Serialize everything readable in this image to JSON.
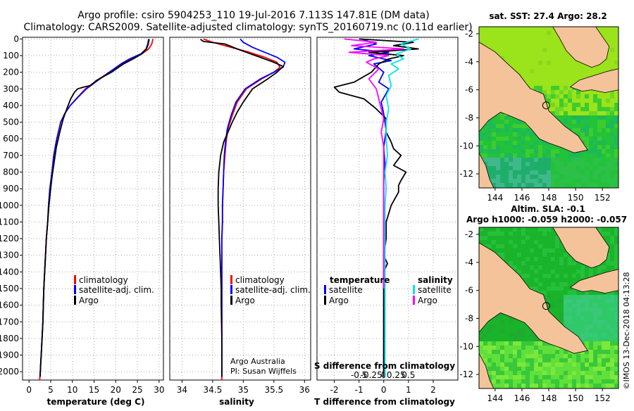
{
  "header": {
    "line1": "Argo profile: csiro 5904253_110 19-Jul-2016 7.113S 147.81E (DM data)",
    "line2": "Climatology: CARS2009. Satellite-adjusted climatology: synTS_20160719.nc (0.11d earlier)"
  },
  "watermark": "©IMOS 13-Dec-2018 04:13:28",
  "colors": {
    "climatology": "#ff0000",
    "satellite": "#0000ff",
    "argo": "#000000",
    "sat_salt": "#00e5e5",
    "argo_salt": "#ff00ff",
    "land": "#f5c39a"
  },
  "chart_data": [
    {
      "type": "line",
      "id": "temperature",
      "xlabel": "temperature (deg C)",
      "ylabel": "",
      "xlim": [
        -1.5,
        31
      ],
      "ylim": [
        2050,
        -10
      ],
      "xticks": [
        "0",
        "5",
        "10",
        "15",
        "20",
        "25",
        "30"
      ],
      "yticks": [
        "0",
        "100",
        "200",
        "300",
        "400",
        "500",
        "600",
        "700",
        "800",
        "900",
        "1000",
        "1100",
        "1200",
        "1300",
        "1400",
        "1500",
        "1600",
        "1700",
        "1800",
        "1900",
        "2000"
      ],
      "legend": [
        "climatology",
        "satellite-adj. clim.",
        "Argo"
      ],
      "legend_position": "lower-right",
      "series": [
        {
          "name": "climatology",
          "color": "#ff0000",
          "x": [
            28.6,
            28.3,
            27.6,
            26,
            23.5,
            21.5,
            18.5,
            15.6,
            13,
            11.2,
            9.5,
            8.2,
            7.3,
            6.4,
            5.7,
            5.3,
            4.8,
            4.5,
            4.3,
            4.0,
            3.8,
            3.6,
            3.4,
            3.3,
            3.2,
            3.0,
            2.9,
            2.8,
            2.7,
            2.6,
            2.5,
            2.45
          ],
          "y": [
            0,
            30,
            60,
            90,
            120,
            150,
            200,
            250,
            300,
            350,
            400,
            450,
            500,
            600,
            700,
            800,
            900,
            1000,
            1100,
            1200,
            1300,
            1400,
            1500,
            1600,
            1700,
            1800,
            1850,
            1900,
            1950,
            2000,
            2030,
            2050
          ]
        },
        {
          "name": "satellite-adj. clim.",
          "color": "#0000ff",
          "x": [
            27.6,
            27.4,
            27.0,
            25.8,
            23.2,
            21.2,
            18.5,
            15.8,
            13.2,
            11.3,
            9.5,
            8.2,
            7.3,
            6.4,
            5.7,
            5.3,
            4.8,
            4.5,
            4.3,
            4.0,
            3.8,
            3.6,
            3.4,
            3.3,
            3.2,
            3.0,
            2.9,
            2.8,
            2.7,
            2.6,
            2.55
          ],
          "y": [
            0,
            30,
            60,
            90,
            120,
            150,
            200,
            250,
            300,
            350,
            400,
            450,
            500,
            600,
            700,
            800,
            900,
            1000,
            1100,
            1200,
            1300,
            1400,
            1500,
            1600,
            1700,
            1800,
            1850,
            1900,
            1950,
            2000,
            2030
          ]
        },
        {
          "name": "Argo",
          "color": "#000000",
          "x": [
            27.7,
            27.5,
            27.1,
            26,
            24,
            21.8,
            19,
            15.5,
            14.2,
            12.5,
            11.2,
            10.5,
            9.6,
            8.7,
            7.9,
            7.1,
            6.3,
            5.8,
            5.3,
            4.9,
            4.6,
            4.3,
            4.0,
            3.8,
            3.6,
            3.4,
            3.3,
            3.2,
            3.0,
            2.9,
            2.8,
            2.7,
            2.6,
            2.55
          ],
          "y": [
            2,
            30,
            60,
            90,
            120,
            150,
            200,
            250,
            280,
            290,
            300,
            320,
            360,
            420,
            480,
            560,
            650,
            740,
            830,
            920,
            1000,
            1100,
            1200,
            1300,
            1400,
            1500,
            1600,
            1700,
            1800,
            1850,
            1900,
            1950,
            2000,
            2030
          ]
        }
      ]
    },
    {
      "type": "line",
      "id": "salinity",
      "xlabel": "salinity",
      "xlim": [
        33.8,
        36.1
      ],
      "ylim": [
        2050,
        -10
      ],
      "xticks": [
        "34",
        "34.5",
        "35",
        "35.5",
        "36"
      ],
      "legend": [
        "climatology",
        "satellite-adj. clim.",
        "Argo"
      ],
      "legend_position": "lower-right",
      "annotation": [
        "Argo Australia",
        "PI: Susan Wijffels"
      ],
      "series": [
        {
          "name": "climatology",
          "color": "#ff0000",
          "x": [
            34.35,
            34.5,
            34.8,
            35.1,
            35.35,
            35.55,
            35.6,
            35.5,
            35.3,
            35.05,
            34.9,
            34.82,
            34.75,
            34.72,
            34.7,
            34.68,
            34.67,
            34.66,
            34.66,
            34.65,
            34.65,
            34.65,
            34.65,
            34.65,
            34.65,
            34.65,
            34.65,
            34.65
          ],
          "y": [
            0,
            20,
            50,
            80,
            110,
            140,
            170,
            200,
            240,
            300,
            380,
            460,
            540,
            620,
            700,
            800,
            900,
            1000,
            1100,
            1200,
            1300,
            1400,
            1500,
            1600,
            1700,
            1800,
            1900,
            2050
          ]
        },
        {
          "name": "satellite-adj. clim.",
          "color": "#0000ff",
          "x": [
            34.95,
            35.0,
            35.15,
            35.35,
            35.55,
            35.68,
            35.65,
            35.5,
            35.28,
            35.03,
            34.88,
            34.8,
            34.74,
            34.71,
            34.69,
            34.68,
            34.67,
            34.66,
            34.66,
            34.65,
            34.65,
            34.65,
            34.65,
            34.65,
            34.65,
            34.65,
            34.65
          ],
          "y": [
            0,
            20,
            50,
            80,
            110,
            140,
            170,
            200,
            240,
            300,
            380,
            460,
            540,
            620,
            700,
            800,
            900,
            1000,
            1100,
            1200,
            1300,
            1400,
            1500,
            1600,
            1700,
            1800,
            2030
          ]
        },
        {
          "name": "Argo",
          "color": "#000000",
          "x": [
            34.3,
            34.35,
            34.7,
            34.9,
            35.2,
            35.5,
            35.65,
            35.55,
            35.4,
            35.15,
            35.0,
            34.9,
            34.82,
            34.75,
            34.68,
            34.63,
            34.6,
            34.59,
            34.59,
            34.6,
            34.61,
            34.62,
            34.63,
            34.64,
            34.64,
            34.65,
            34.65
          ],
          "y": [
            2,
            15,
            30,
            60,
            100,
            140,
            165,
            200,
            240,
            300,
            380,
            440,
            500,
            560,
            620,
            700,
            800,
            900,
            1000,
            1100,
            1200,
            1300,
            1400,
            1500,
            1600,
            1800,
            2030
          ]
        }
      ]
    },
    {
      "type": "line",
      "id": "difference",
      "xlabel": "T difference from climatology",
      "xlabel2": "S difference from climatology",
      "xlim": [
        -2.7,
        3.0
      ],
      "ylim": [
        2050,
        -10
      ],
      "xticks": [
        "-2",
        "-1",
        "0",
        "1",
        "2"
      ],
      "xticks_s": [
        "-0.5",
        "-0.25",
        "0",
        "0.25",
        "0.5"
      ],
      "legend_t": [
        "temperature",
        "satellite",
        "Argo"
      ],
      "legend_s": [
        "salinity",
        "satellite",
        "Argo"
      ],
      "series": [
        {
          "name": "T satellite",
          "color": "#0000ff",
          "x": [
            -0.9,
            -0.3,
            -1.2,
            0.2,
            -0.6,
            0.3,
            -0.4,
            0.0,
            -0.2,
            0.2,
            -0.1,
            0.0,
            0.1,
            0.0,
            0.05,
            0.0,
            0.0,
            0.0,
            0.0,
            0.0,
            0.0,
            0.0,
            0.0,
            0.0
          ],
          "y": [
            0,
            30,
            60,
            80,
            100,
            130,
            150,
            200,
            260,
            300,
            380,
            450,
            550,
            650,
            750,
            850,
            950,
            1100,
            1300,
            1500,
            1700,
            1900,
            2000,
            2030
          ]
        },
        {
          "name": "T Argo",
          "color": "#000000",
          "x": [
            -1.0,
            1.2,
            0.4,
            1.4,
            -0.6,
            0.8,
            0.2,
            -0.2,
            -0.5,
            -1.2,
            -2.0,
            -1.8,
            -0.8,
            -0.3,
            0.1,
            0.1,
            0.3,
            0.4,
            0.7,
            0.4,
            0.9,
            0.7,
            0.6,
            0.6,
            0.3,
            0.1,
            0.1,
            0.0,
            0.15,
            0.0,
            0.0,
            0.0,
            0.0
          ],
          "y": [
            0,
            20,
            40,
            60,
            80,
            100,
            120,
            150,
            200,
            260,
            290,
            320,
            360,
            420,
            480,
            560,
            620,
            660,
            700,
            760,
            800,
            850,
            880,
            920,
            1000,
            1100,
            1200,
            1300,
            1350,
            1400,
            1600,
            1800,
            2030
          ]
        },
        {
          "name": "S satellite",
          "color": "#00e5e5",
          "x": [
            1.4,
            0.7,
            1.1,
            0.5,
            0.8,
            0.3,
            0.6,
            0.2,
            0.3,
            0.1,
            0.2,
            0.1,
            0.1,
            0.15,
            0.05,
            0.1,
            0.05,
            0.05,
            0.05,
            0.05,
            0.05
          ],
          "y": [
            0,
            30,
            60,
            90,
            120,
            150,
            180,
            220,
            280,
            340,
            420,
            500,
            600,
            700,
            800,
            900,
            1000,
            1200,
            1500,
            1800,
            2030
          ]
        },
        {
          "name": "S Argo",
          "color": "#ff00ff",
          "x": [
            -1.6,
            -0.3,
            -1.3,
            0.8,
            -1.4,
            0.2,
            -0.4,
            -0.7,
            -0.2,
            -0.6,
            -0.3,
            -0.2,
            -0.1,
            0.0,
            -0.1,
            0.0,
            0.0,
            0.0,
            0.0,
            0.0,
            0.0
          ],
          "y": [
            0,
            20,
            40,
            60,
            80,
            100,
            120,
            140,
            180,
            240,
            300,
            360,
            420,
            480,
            560,
            650,
            750,
            850,
            1000,
            1200,
            1500
          ]
        }
      ]
    },
    {
      "type": "heatmap",
      "id": "sst-map",
      "title": "sat. SST: 27.4 Argo: 28.2",
      "xticks": [
        "144",
        "146",
        "148",
        "150",
        "152"
      ],
      "yticks": [
        "-2",
        "-4",
        "-6",
        "-8",
        "-10",
        "-12"
      ],
      "xlim": [
        142.8,
        153.2
      ],
      "ylim": [
        -13.0,
        -1.5
      ],
      "argo_position": [
        147.81,
        -7.113
      ]
    },
    {
      "type": "heatmap",
      "id": "sla-map",
      "title": "Altim. SLA: -0.1",
      "subtitle": "Argo h1000: -0.059 h2000: -0.057",
      "xticks": [
        "144",
        "146",
        "148",
        "150",
        "152"
      ],
      "yticks": [
        "-2",
        "-4",
        "-6",
        "-8",
        "-10",
        "-12"
      ],
      "xlim": [
        142.8,
        153.2
      ],
      "ylim": [
        -13.0,
        -1.5
      ],
      "argo_position": [
        147.81,
        -7.113
      ]
    }
  ]
}
